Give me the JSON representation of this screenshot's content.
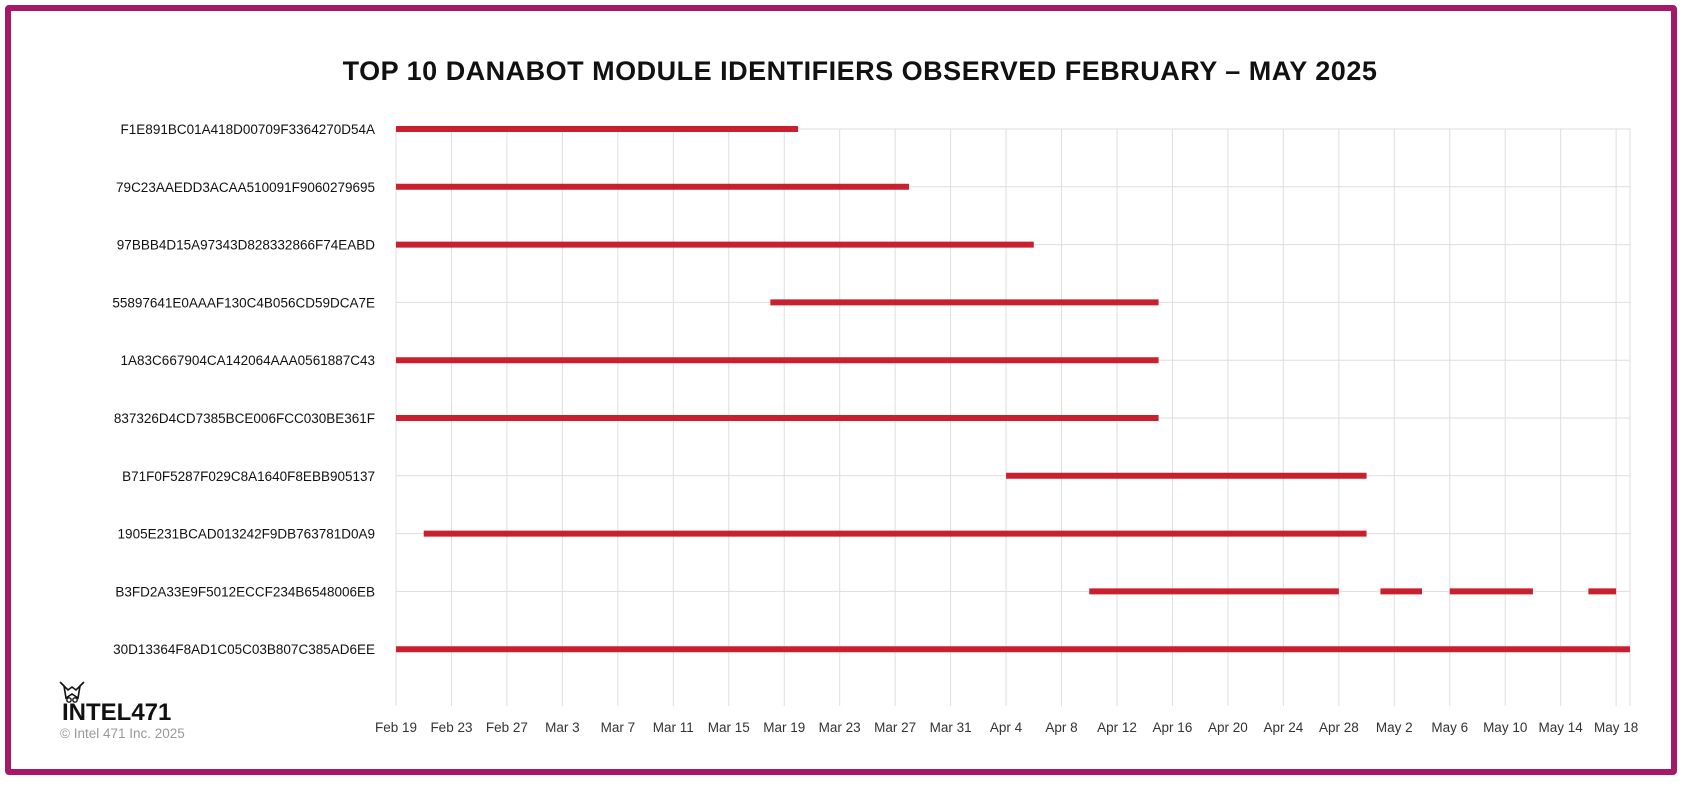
{
  "chart_data": {
    "type": "timeline",
    "title": "TOP 10 DANABOT MODULE IDENTIFIERS OBSERVED FEBRUARY – MAY 2025",
    "xlabel": "",
    "ylabel": "",
    "x_tick_labels": [
      "Feb 19",
      "Feb 23",
      "Feb 27",
      "Mar 3",
      "Mar 7",
      "Mar 11",
      "Mar 15",
      "Mar 19",
      "Mar 23",
      "Mar 27",
      "Mar 31",
      "Apr 4",
      "Apr 8",
      "Apr 12",
      "Apr 16",
      "Apr 20",
      "Apr 24",
      "Apr 28",
      "May 2",
      "May 6",
      "May 10",
      "May 14",
      "May 18"
    ],
    "x_range": [
      "2025-02-19",
      "2025-05-19"
    ],
    "bar_color": "#c8202f",
    "grid_color": "#dedede",
    "rows": [
      {
        "id": "F1E891BC01A418D00709F3364270D54A",
        "segments": [
          [
            "2025-02-19",
            "2025-03-20"
          ]
        ]
      },
      {
        "id": "79C23AAEDD3ACAA510091F9060279695",
        "segments": [
          [
            "2025-02-19",
            "2025-03-28"
          ]
        ]
      },
      {
        "id": "97BBB4D15A97343D828332866F74EABD",
        "segments": [
          [
            "2025-02-19",
            "2025-04-06"
          ]
        ]
      },
      {
        "id": "55897641E0AAAF130C4B056CD59DCA7E",
        "segments": [
          [
            "2025-03-18",
            "2025-04-15"
          ]
        ]
      },
      {
        "id": "1A83C667904CA142064AAA0561887C43",
        "segments": [
          [
            "2025-02-19",
            "2025-04-15"
          ]
        ]
      },
      {
        "id": "837326D4CD7385BCE006FCC030BE361F",
        "segments": [
          [
            "2025-02-19",
            "2025-04-15"
          ]
        ]
      },
      {
        "id": "B71F0F5287F029C8A1640F8EBB905137",
        "segments": [
          [
            "2025-04-04",
            "2025-04-30"
          ]
        ]
      },
      {
        "id": "1905E231BCAD013242F9DB763781D0A9",
        "segments": [
          [
            "2025-02-21",
            "2025-04-30"
          ]
        ]
      },
      {
        "id": "B3FD2A33E9F5012ECCF234B6548006EB",
        "segments": [
          [
            "2025-04-10",
            "2025-04-28"
          ],
          [
            "2025-05-01",
            "2025-05-04"
          ],
          [
            "2025-05-06",
            "2025-05-12"
          ],
          [
            "2025-05-16",
            "2025-05-18"
          ]
        ]
      },
      {
        "id": "30D13364F8AD1C05C03B807C385AD6EE",
        "segments": [
          [
            "2025-02-19",
            "2025-05-19"
          ]
        ]
      }
    ]
  },
  "branding": {
    "logo_text": "INTEL471",
    "copyright": "© Intel 471 Inc. 2025"
  }
}
